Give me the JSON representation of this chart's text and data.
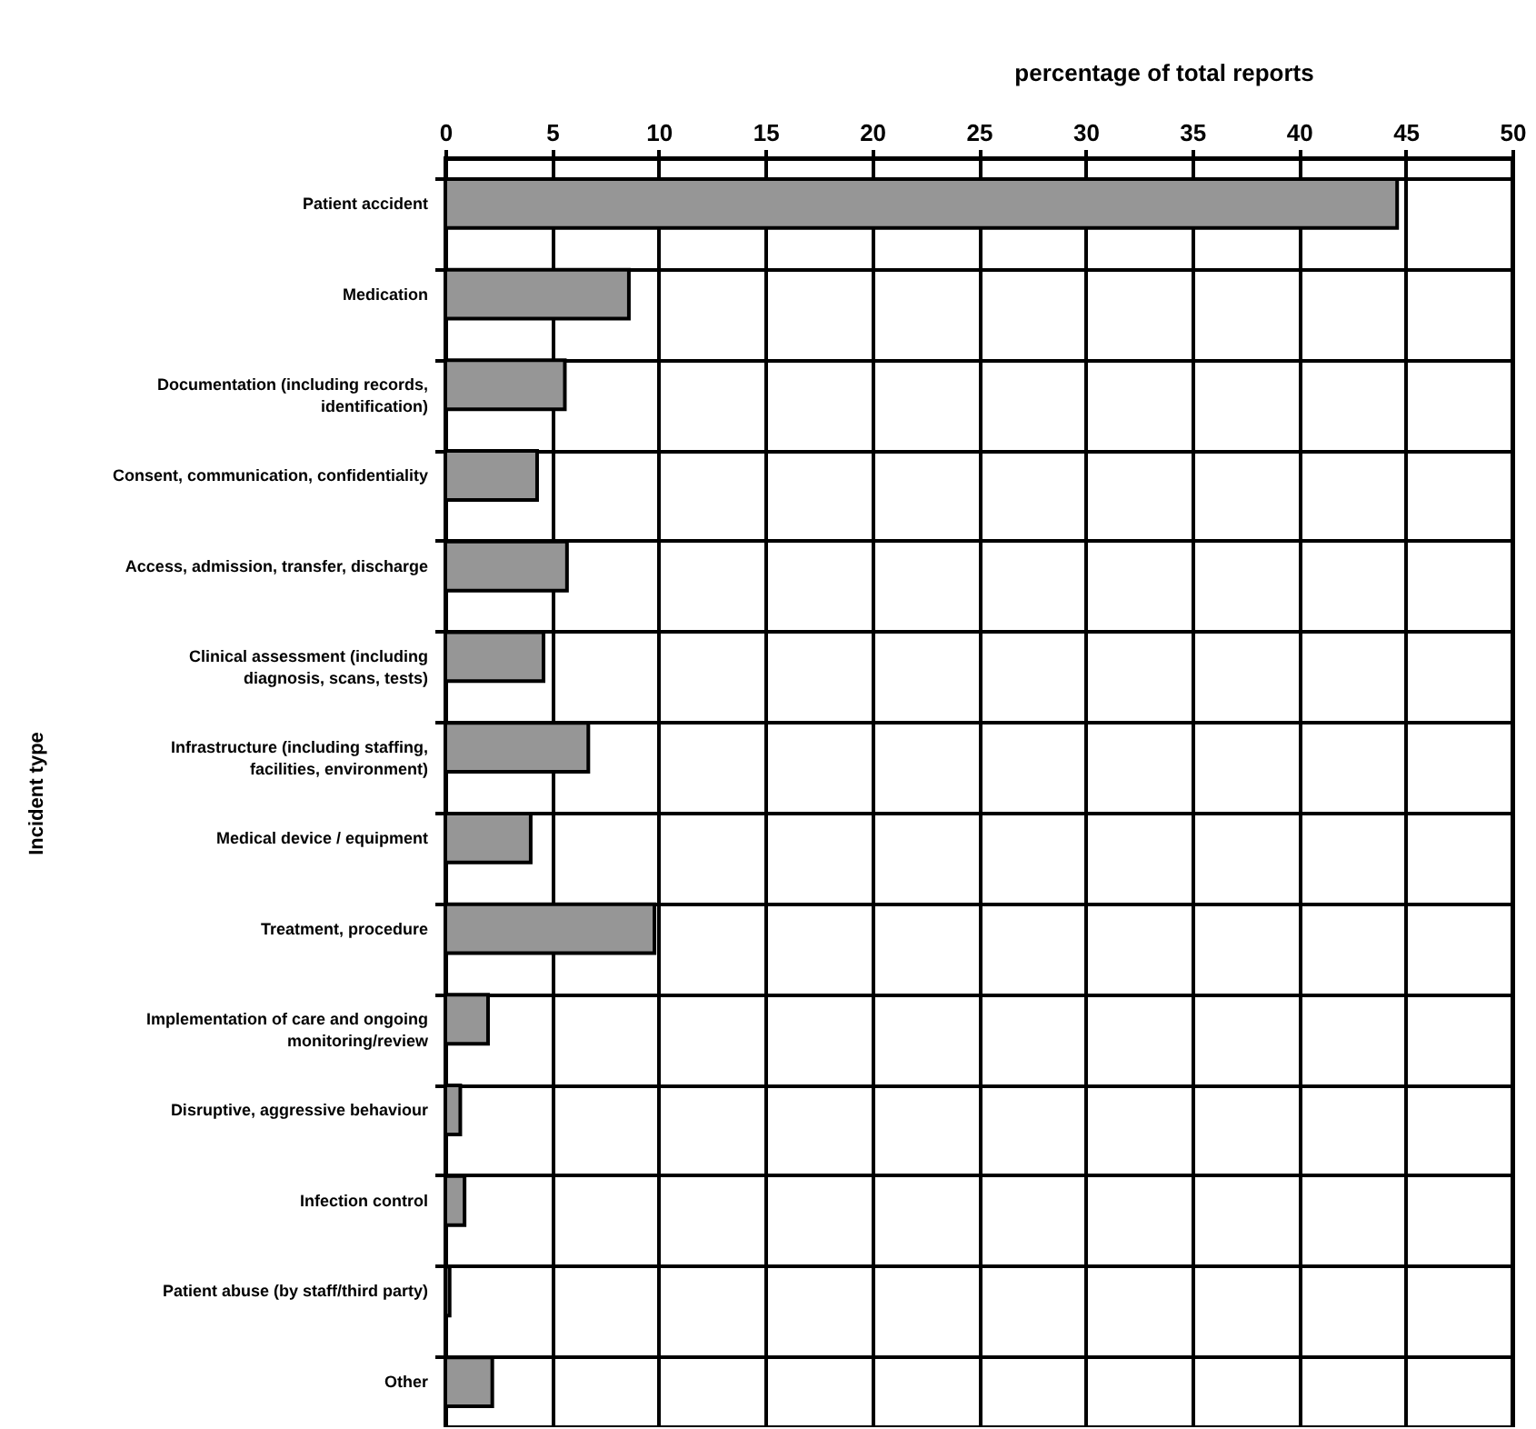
{
  "chart_data": {
    "type": "bar",
    "orientation": "horizontal",
    "xlabel": "percentage of total reports",
    "ylabel": "Incident type",
    "categories": [
      "Patient accident",
      "Medication",
      "Documentation (including records, identification)",
      "Consent, communication, confidentiality",
      "Access, admission, transfer, discharge",
      "Clinical assessment (including diagnosis, scans, tests)",
      "Infrastructure (including staffing, facilities, environment)",
      "Medical device / equipment",
      "Treatment, procedure",
      "Implementation of care and ongoing monitoring/review",
      "Disruptive, aggressive behaviour",
      "Infection control",
      "Patient abuse (by staff/third party)",
      "Other"
    ],
    "values": [
      44.6,
      8.6,
      5.6,
      4.3,
      5.7,
      4.6,
      6.7,
      4.0,
      9.8,
      2.0,
      0.7,
      0.9,
      0.2,
      2.2
    ],
    "color": "#969696",
    "xlim": [
      0,
      50
    ],
    "xticks": [
      0,
      5,
      10,
      15,
      20,
      25,
      30,
      35,
      40,
      45,
      50
    ],
    "grid": true
  }
}
